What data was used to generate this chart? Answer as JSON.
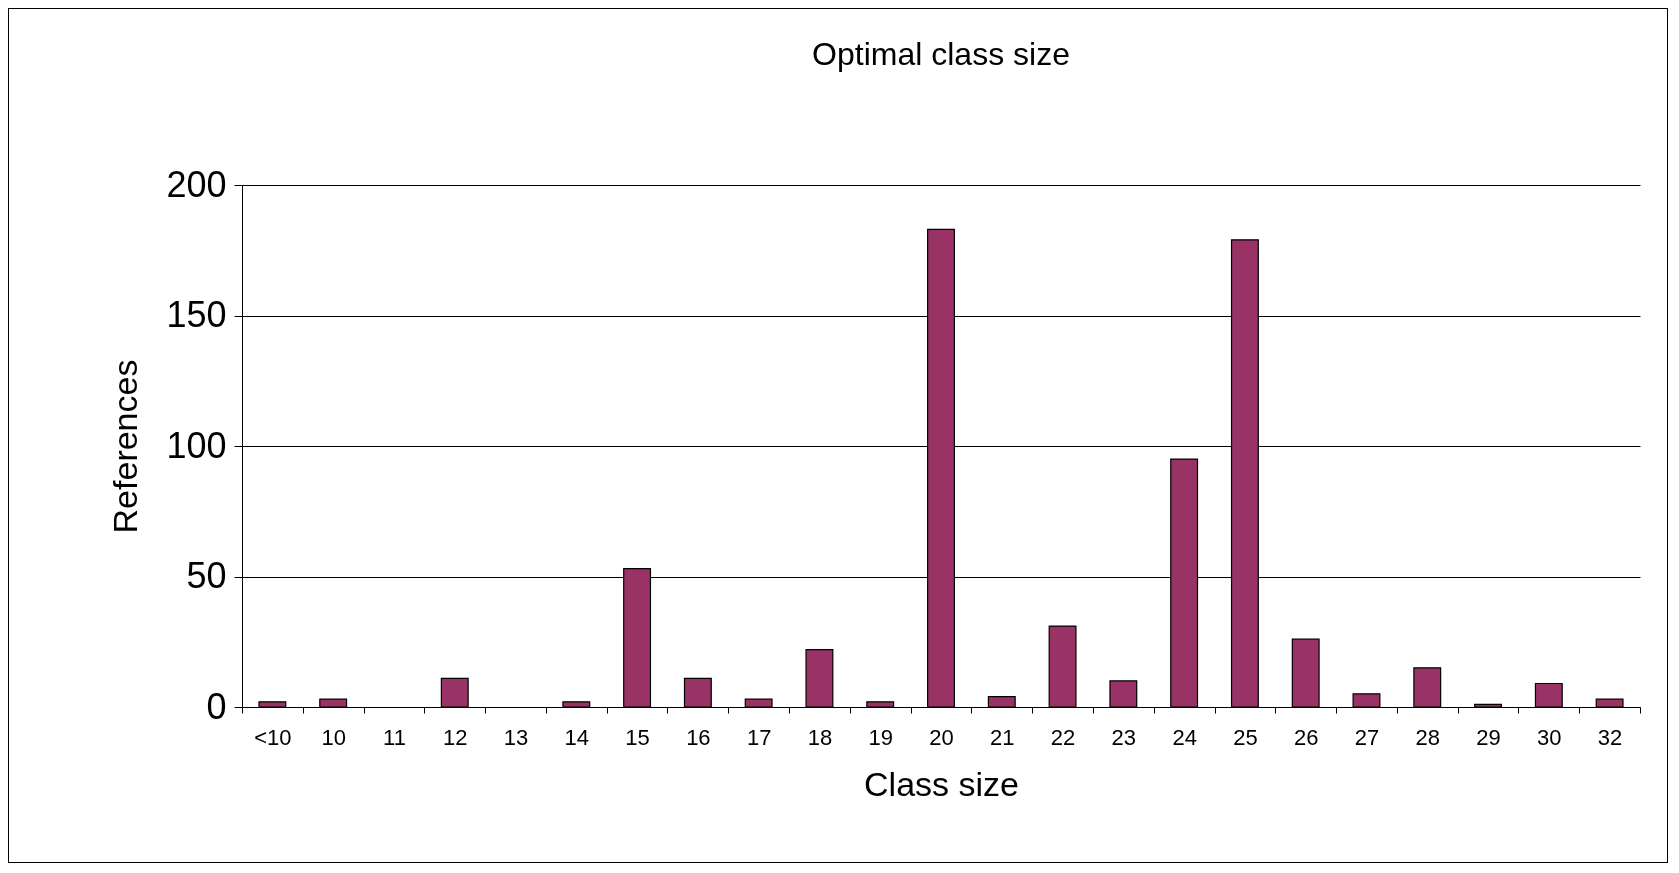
{
  "chart_data": {
    "type": "bar",
    "title": "Optimal class size",
    "xlabel": "Class size",
    "ylabel": "References",
    "categories": [
      "<10",
      "10",
      "11",
      "12",
      "13",
      "14",
      "15",
      "16",
      "17",
      "18",
      "19",
      "20",
      "21",
      "22",
      "23",
      "24",
      "25",
      "26",
      "27",
      "28",
      "29",
      "30",
      "32"
    ],
    "values": [
      2,
      3,
      0,
      11,
      0,
      2,
      53,
      11,
      3,
      22,
      2,
      183,
      4,
      31,
      10,
      95,
      179,
      26,
      5,
      15,
      1,
      9,
      3
    ],
    "color": "#993366",
    "ylim": [
      0,
      200
    ],
    "yticks": [
      0,
      50,
      100,
      150,
      200
    ],
    "grid": "y"
  }
}
